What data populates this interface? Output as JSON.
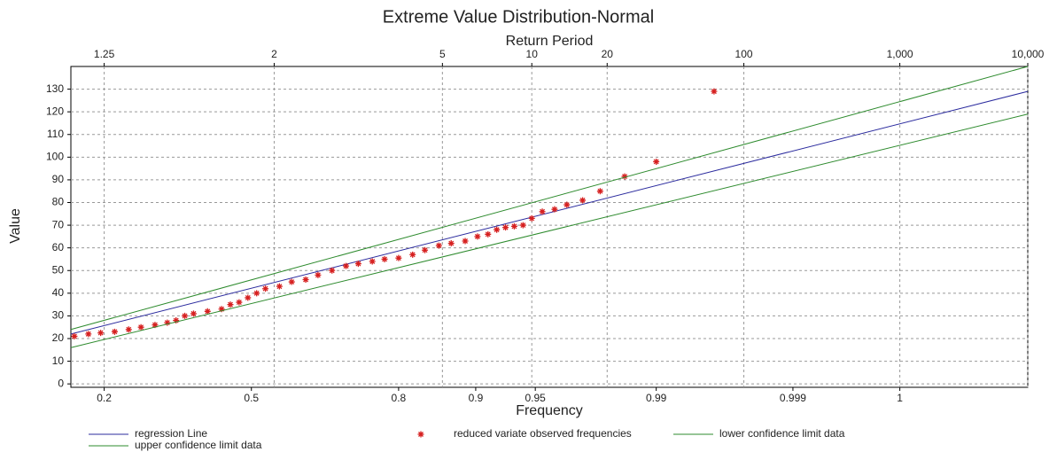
{
  "chart_data": {
    "type": "line",
    "title": "Extreme Value Distribution-Normal",
    "x2_label": "Return Period",
    "x_label": "Frequency",
    "y_label": "Value",
    "xlim": [
      -1.03,
      4.43
    ],
    "ylim": [
      -1.5,
      140
    ],
    "yticks": [
      0,
      10,
      20,
      30,
      40,
      50,
      60,
      70,
      80,
      90,
      100,
      110,
      120,
      130
    ],
    "xticks": [
      {
        "value": -0.84,
        "label": "0.2"
      },
      {
        "value": 0,
        "label": "0.5"
      },
      {
        "value": 0.84,
        "label": "0.8"
      },
      {
        "value": 1.28,
        "label": "0.9"
      },
      {
        "value": 1.62,
        "label": "0.95"
      },
      {
        "value": 2.31,
        "label": "0.99"
      },
      {
        "value": 3.09,
        "label": "0.999"
      },
      {
        "value": 3.7,
        "label": "1"
      }
    ],
    "x2ticks": [
      {
        "value": -0.84,
        "label": "1.25"
      },
      {
        "value": 0.13,
        "label": "2"
      },
      {
        "value": 1.09,
        "label": "5"
      },
      {
        "value": 1.6,
        "label": "10"
      },
      {
        "value": 2.03,
        "label": "20"
      },
      {
        "value": 2.81,
        "label": "100"
      },
      {
        "value": 3.7,
        "label": "1,000"
      },
      {
        "value": 4.43,
        "label": "10,000"
      }
    ],
    "grid": true,
    "series": [
      {
        "name": "regression Line",
        "color": "#2b2b9e",
        "kind": "line",
        "x": [
          -1.03,
          4.43
        ],
        "values": [
          22,
          129
        ]
      },
      {
        "name": "reduced variate observed frequencies",
        "color": "#d62020",
        "kind": "scatter",
        "x": [
          -1.01,
          -0.93,
          -0.86,
          -0.78,
          -0.7,
          -0.63,
          -0.55,
          -0.48,
          -0.43,
          -0.38,
          -0.33,
          -0.25,
          -0.17,
          -0.12,
          -0.07,
          -0.02,
          0.03,
          0.08,
          0.16,
          0.23,
          0.31,
          0.38,
          0.46,
          0.54,
          0.61,
          0.69,
          0.76,
          0.84,
          0.92,
          0.99,
          1.07,
          1.14,
          1.22,
          1.29,
          1.35,
          1.4,
          1.45,
          1.5,
          1.55,
          1.6,
          1.66,
          1.73,
          1.8,
          1.89,
          1.99,
          2.13,
          2.31,
          2.64
        ],
        "values": [
          21,
          22,
          22.5,
          23,
          24,
          25,
          26,
          27,
          28,
          30,
          31,
          32,
          33,
          35,
          36,
          38,
          40,
          42,
          43,
          45,
          46,
          48,
          50,
          52,
          53,
          54,
          55,
          55.5,
          57,
          59,
          61,
          62,
          63,
          65,
          66,
          68,
          69,
          69.5,
          70,
          73,
          76,
          77,
          79,
          81,
          85,
          91.5,
          98,
          129
        ]
      },
      {
        "name": "lower confidence limit data",
        "color": "#2e8b2e",
        "kind": "line",
        "x": [
          -1.03,
          4.43
        ],
        "values": [
          16,
          119
        ]
      },
      {
        "name": "upper confidence limit data",
        "color": "#2e8b2e",
        "kind": "line",
        "x": [
          -1.03,
          4.43
        ],
        "values": [
          24,
          140
        ]
      }
    ]
  }
}
